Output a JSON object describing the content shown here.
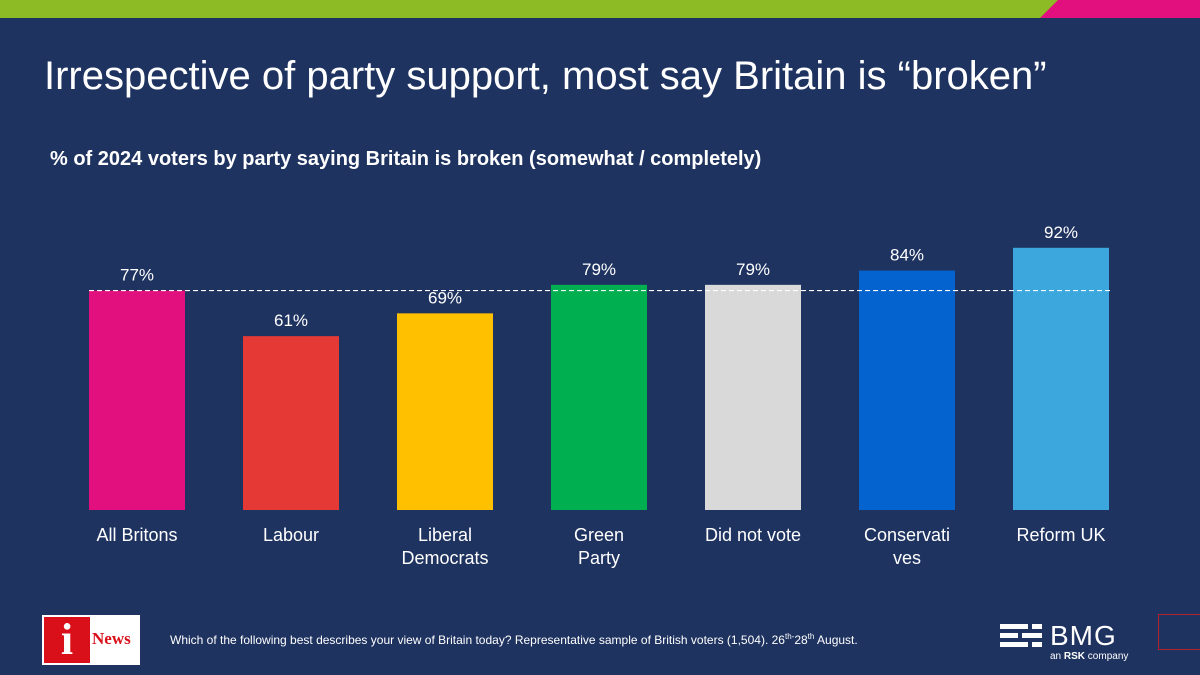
{
  "title": "Irrespective of party support, most say Britain is “broken”",
  "subtitle": "% of 2024 voters by party saying Britain is broken (somewhat / completely)",
  "footnote": {
    "text_before": "Which of the following best describes your view of Britain today? Representative sample of British voters (1,504). 26",
    "sup1": "th",
    "dash": "-",
    "middle": "28",
    "sup2": "th",
    "text_after": " August."
  },
  "logos": {
    "inews_letter": "i",
    "inews_word": "News",
    "bmg_word": "BMG",
    "bmg_tag_prefix": "an ",
    "bmg_tag_brand": "RSK",
    "bmg_tag_suffix": " company"
  },
  "colors": {
    "background": "#1f3360",
    "accent_green": "#8dbb25",
    "accent_pink": "#e2107f"
  },
  "chart_data": {
    "type": "bar",
    "title": "% of 2024 voters by party saying Britain is broken (somewhat / completely)",
    "categories": [
      [
        "All Britons"
      ],
      [
        "Labour"
      ],
      [
        "Liberal",
        "Democrats"
      ],
      [
        "Green",
        "Party"
      ],
      [
        "Did not vote"
      ],
      [
        "Conservati",
        "ves"
      ],
      [
        "Reform UK"
      ]
    ],
    "values": [
      77,
      61,
      69,
      79,
      79,
      84,
      92
    ],
    "value_labels": [
      "77%",
      "61%",
      "69%",
      "79%",
      "79%",
      "84%",
      "92%"
    ],
    "colors": [
      "#e2107f",
      "#e53935",
      "#ffc000",
      "#00b050",
      "#d9d9d9",
      "#0563cf",
      "#3ba7dc"
    ],
    "reference_line": 77,
    "ylim": [
      0,
      100
    ],
    "grid": false,
    "legend": "none"
  }
}
